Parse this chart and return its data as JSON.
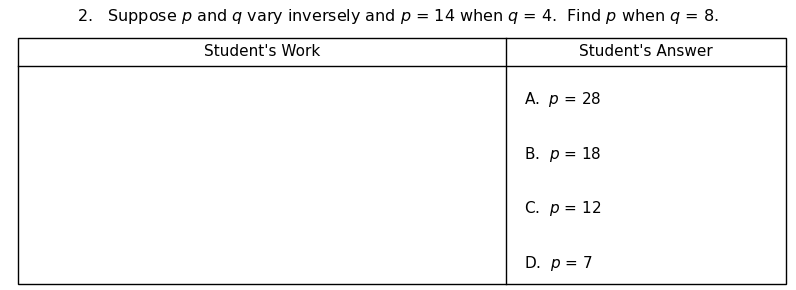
{
  "title": "2.   Suppose $p$ and $q$ vary inversely and $p$ = 14 when $q$ = 4.  Find $p$ when $q$ = 8.",
  "col1_header": "Student's Work",
  "col2_header": "Student's Answer",
  "answers": [
    "A.  $p$ = 28",
    "B.  $p$ = 18",
    "C.  $p$ = 12",
    "D.  $p$ = 7"
  ],
  "background_color": "#ffffff",
  "border_color": "#000000",
  "text_color": "#000000",
  "title_fontsize": 11.5,
  "header_fontsize": 11,
  "answer_fontsize": 11,
  "fig_width": 7.96,
  "fig_height": 2.9,
  "dpi": 100
}
